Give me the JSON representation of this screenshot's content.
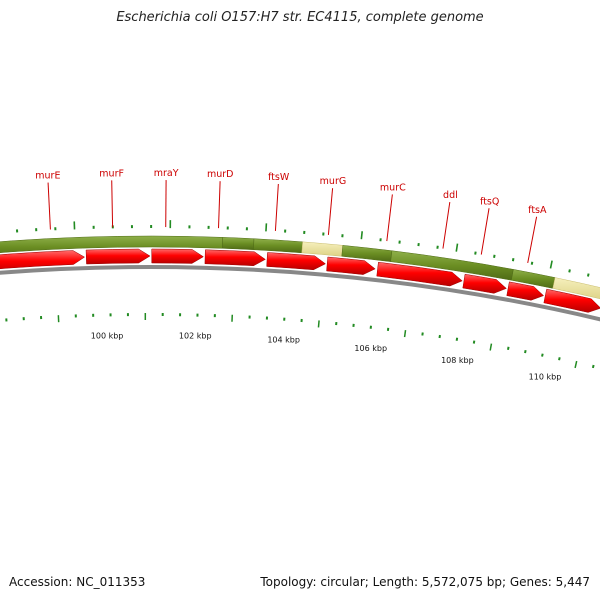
{
  "title": "Escherichia coli O157:H7 str. EC4115, complete genome",
  "genes": [
    {
      "name": "murE",
      "label_color": "#cc0000"
    },
    {
      "name": "murF",
      "label_color": "#cc0000"
    },
    {
      "name": "mraY",
      "label_color": "#cc0000"
    },
    {
      "name": "murD",
      "label_color": "#cc0000"
    },
    {
      "name": "ftsW",
      "label_color": "#cc0000"
    },
    {
      "name": "murG",
      "label_color": "#cc0000"
    },
    {
      "name": "murC",
      "label_color": "#cc0000"
    },
    {
      "name": "ddl",
      "label_color": "#cc0000"
    },
    {
      "name": "ftsQ",
      "label_color": "#cc0000"
    },
    {
      "name": "ftsA",
      "label_color": "#cc0000"
    }
  ],
  "scale_labels": [
    "100 kbp",
    "102 kbp",
    "104 kbp",
    "106 kbp",
    "108 kbp",
    "110 kbp"
  ],
  "colors": {
    "cds_arrow": "#ee0000",
    "category_green": "#6b8e23",
    "category_yellow": "#eee6a0",
    "tick_green": "#228b22",
    "backbone": "#888888"
  },
  "footer": {
    "accession": "Accession: NC_011353",
    "stats": "Topology: circular; Length: 5,572,075 bp; Genes: 5,447"
  }
}
